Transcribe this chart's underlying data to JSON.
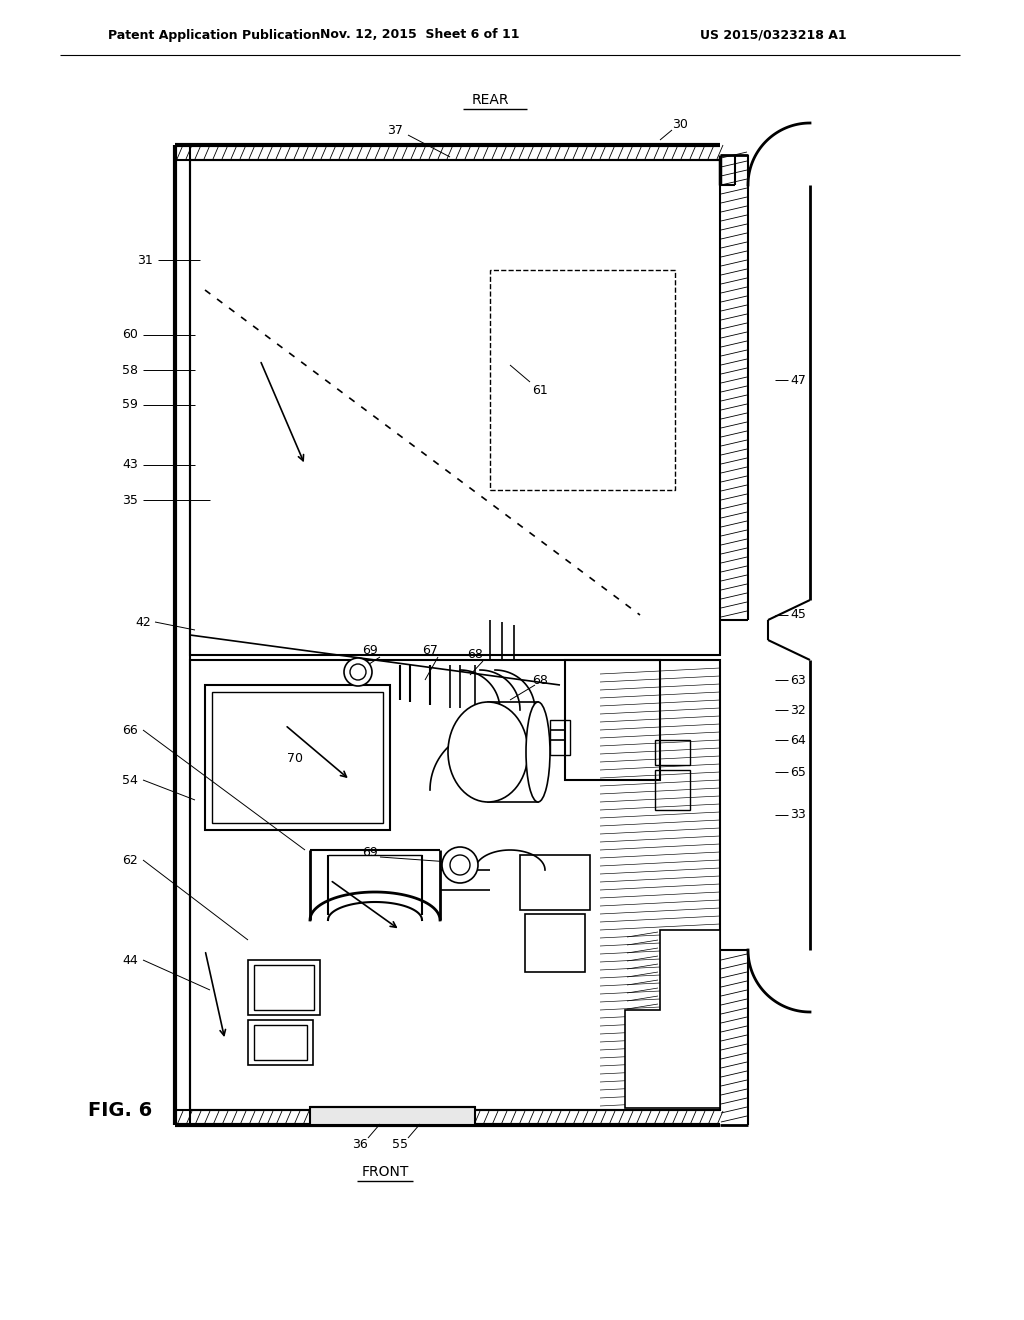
{
  "title_left": "Patent Application Publication",
  "title_mid": "Nov. 12, 2015  Sheet 6 of 11",
  "title_right": "US 2015/0323218 A1",
  "fig_label": "FIG. 6",
  "rear_label": "REAR",
  "front_label": "FRONT",
  "bg_color": "#ffffff"
}
